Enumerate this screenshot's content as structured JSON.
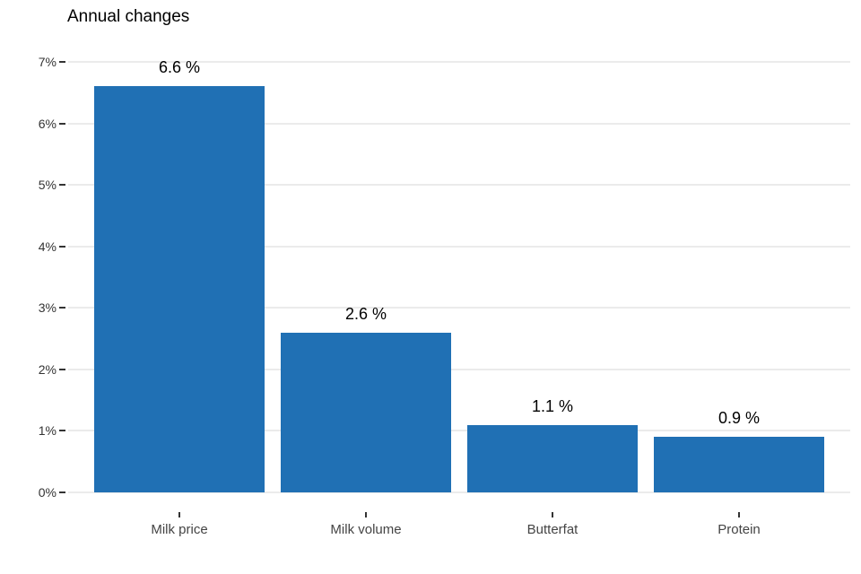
{
  "title": "Annual changes",
  "colors": {
    "bar": "#2070b4",
    "gridline": "#ebebeb",
    "axis_tick": "#333333",
    "y_label_text": "#333333",
    "x_label_text": "#444444",
    "title_text": "#000000",
    "value_label_text": "#000000",
    "background": "#ffffff"
  },
  "chart_data": {
    "type": "bar",
    "title": "Annual changes",
    "categories": [
      "Milk price",
      "Milk volume",
      "Butterfat",
      "Protein"
    ],
    "values": [
      6.6,
      2.6,
      1.1,
      0.9
    ],
    "value_labels": [
      "6.6 %",
      "2.6 %",
      "1.1 %",
      "0.9 %"
    ],
    "y_tick_labels": [
      "0%",
      "1%",
      "2%",
      "3%",
      "4%",
      "5%",
      "6%",
      "7%"
    ],
    "y_tick_values": [
      0,
      1,
      2,
      3,
      4,
      5,
      6,
      7
    ],
    "ylim": [
      0,
      7
    ],
    "xlabel": "",
    "ylabel": "",
    "grid": "horizontal",
    "legend": "none"
  }
}
